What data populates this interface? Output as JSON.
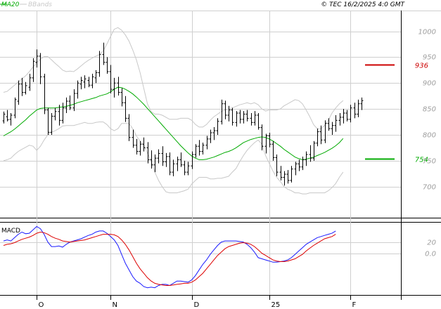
{
  "chart_data": [
    {
      "type": "line",
      "title": "",
      "xlabel": "",
      "ylabel": "",
      "legend": [
        {
          "label": "MA20",
          "color": "#00aa00"
        },
        {
          "label": "BBands",
          "color": "#c8c8c8"
        }
      ],
      "timestamp": "© TEC 16/2/2025 4:0 GMT",
      "xaxis": {
        "labels": [
          "O",
          "N",
          "D",
          "25",
          "F"
        ],
        "index_positions": [
          9,
          29,
          51,
          72,
          94
        ]
      },
      "yaxis": {
        "range": [
          640,
          1040
        ],
        "ticks": [
          1000,
          950,
          900,
          850,
          800,
          750,
          700
        ],
        "ticklabels": [
          "1000",
          "950",
          "900",
          "850",
          "800",
          "750",
          "700"
        ]
      },
      "levels": [
        {
          "value": 936,
          "label": "936",
          "color": "#cc0000"
        },
        {
          "value": 754,
          "label": "754",
          "color": "#00aa00"
        }
      ],
      "ohlc": [
        [
          827,
          845,
          822,
          840
        ],
        [
          835,
          848,
          826,
          829
        ],
        [
          830,
          842,
          818,
          838
        ],
        [
          838,
          872,
          832,
          868
        ],
        [
          865,
          905,
          858,
          898
        ],
        [
          898,
          910,
          875,
          882
        ],
        [
          882,
          902,
          878,
          895
        ],
        [
          892,
          918,
          885,
          910
        ],
        [
          910,
          948,
          902,
          942
        ],
        [
          940,
          965,
          930,
          952
        ],
        [
          952,
          958,
          898,
          912
        ],
        [
          912,
          918,
          840,
          848
        ],
        [
          848,
          852,
          800,
          805
        ],
        [
          805,
          842,
          800,
          836
        ],
        [
          836,
          852,
          828,
          845
        ],
        [
          845,
          858,
          818,
          828
        ],
        [
          828,
          862,
          822,
          852
        ],
        [
          852,
          872,
          842,
          865
        ],
        [
          865,
          876,
          848,
          852
        ],
        [
          852,
          888,
          846,
          880
        ],
        [
          880,
          905,
          870,
          900
        ],
        [
          898,
          912,
          888,
          905
        ],
        [
          902,
          915,
          890,
          908
        ],
        [
          905,
          912,
          892,
          896
        ],
        [
          896,
          918,
          890,
          912
        ],
        [
          910,
          925,
          900,
          920
        ],
        [
          920,
          962,
          912,
          955
        ],
        [
          955,
          978,
          935,
          940
        ],
        [
          940,
          950,
          918,
          922
        ],
        [
          922,
          935,
          880,
          888
        ],
        [
          888,
          910,
          872,
          900
        ],
        [
          900,
          912,
          876,
          882
        ],
        [
          882,
          890,
          855,
          862
        ],
        [
          862,
          875,
          825,
          832
        ],
        [
          832,
          840,
          788,
          795
        ],
        [
          795,
          810,
          775,
          780
        ],
        [
          780,
          792,
          762,
          768
        ],
        [
          768,
          788,
          760,
          782
        ],
        [
          782,
          795,
          768,
          775
        ],
        [
          775,
          786,
          745,
          752
        ],
        [
          752,
          770,
          735,
          742
        ],
        [
          742,
          762,
          728,
          755
        ],
        [
          755,
          772,
          745,
          764
        ],
        [
          764,
          778,
          740,
          748
        ],
        [
          748,
          765,
          738,
          758
        ],
        [
          758,
          766,
          722,
          728
        ],
        [
          728,
          752,
          720,
          744
        ],
        [
          744,
          758,
          730,
          752
        ],
        [
          752,
          766,
          738,
          742
        ],
        [
          742,
          750,
          722,
          728
        ],
        [
          728,
          748,
          722,
          740
        ],
        [
          740,
          768,
          734,
          762
        ],
        [
          762,
          782,
          756,
          778
        ],
        [
          778,
          790,
          760,
          768
        ],
        [
          768,
          785,
          762,
          780
        ],
        [
          780,
          798,
          772,
          792
        ],
        [
          792,
          810,
          784,
          804
        ],
        [
          804,
          815,
          790,
          808
        ],
        [
          808,
          832,
          800,
          826
        ],
        [
          826,
          868,
          820,
          860
        ],
        [
          860,
          866,
          830,
          838
        ],
        [
          838,
          856,
          826,
          848
        ],
        [
          848,
          852,
          818,
          824
        ],
        [
          824,
          846,
          816,
          842
        ],
        [
          842,
          848,
          822,
          830
        ],
        [
          830,
          846,
          822,
          840
        ],
        [
          840,
          848,
          826,
          832
        ],
        [
          832,
          842,
          818,
          824
        ],
        [
          824,
          846,
          818,
          838
        ],
        [
          838,
          842,
          810,
          814
        ],
        [
          814,
          820,
          770,
          778
        ],
        [
          778,
          802,
          764,
          798
        ],
        [
          798,
          804,
          776,
          782
        ],
        [
          782,
          788,
          750,
          756
        ],
        [
          756,
          762,
          720,
          728
        ],
        [
          728,
          740,
          712,
          718
        ],
        [
          718,
          730,
          702,
          724
        ],
        [
          724,
          732,
          706,
          712
        ],
        [
          712,
          740,
          708,
          734
        ],
        [
          734,
          748,
          722,
          744
        ],
        [
          744,
          752,
          730,
          738
        ],
        [
          738,
          758,
          732,
          752
        ],
        [
          752,
          768,
          740,
          762
        ],
        [
          762,
          780,
          748,
          755
        ],
        [
          755,
          788,
          750,
          784
        ],
        [
          784,
          812,
          778,
          806
        ],
        [
          806,
          818,
          782,
          790
        ],
        [
          790,
          828,
          784,
          822
        ],
        [
          822,
          832,
          808,
          812
        ],
        [
          812,
          825,
          800,
          818
        ],
        [
          818,
          838,
          806,
          828
        ],
        [
          828,
          842,
          818,
          834
        ],
        [
          834,
          850,
          822,
          842
        ],
        [
          842,
          848,
          826,
          830
        ],
        [
          830,
          858,
          824,
          852
        ],
        [
          852,
          862,
          832,
          840
        ],
        [
          840,
          868,
          834,
          860
        ],
        [
          860,
          872,
          848,
          866
        ]
      ],
      "ma20": [
        798,
        802,
        806,
        811,
        817,
        823,
        829,
        836,
        842,
        848,
        851,
        852,
        852,
        852,
        852,
        853,
        854,
        855,
        857,
        859,
        862,
        864,
        866,
        868,
        870,
        872,
        875,
        877,
        879,
        883,
        888,
        892,
        891,
        888,
        884,
        879,
        873,
        866,
        859,
        851,
        843,
        835,
        827,
        819,
        811,
        803,
        795,
        787,
        779,
        772,
        765,
        759,
        755,
        752,
        752,
        753,
        755,
        757,
        760,
        763,
        766,
        768,
        771,
        775,
        780,
        785,
        788,
        791,
        793,
        795,
        796,
        795,
        792,
        788,
        783,
        778,
        772,
        767,
        762,
        757,
        754,
        752,
        753,
        755,
        757,
        760,
        763,
        766,
        770,
        774,
        779,
        785,
        793
      ],
      "bb_upper": [
        882,
        884,
        890,
        896,
        902,
        908,
        914,
        922,
        931,
        939,
        946,
        951,
        951,
        945,
        938,
        932,
        925,
        922,
        923,
        922,
        927,
        933,
        939,
        944,
        948,
        952,
        955,
        962,
        975,
        990,
        1004,
        1007,
        1002,
        993,
        981,
        964,
        945,
        920,
        890,
        860,
        845,
        840,
        840,
        838,
        834,
        830,
        830,
        830,
        832,
        832,
        832,
        828,
        820,
        815,
        815,
        820,
        828,
        835,
        840,
        845,
        848,
        850,
        852,
        855,
        858,
        860,
        862,
        860,
        862,
        858,
        850,
        846,
        848,
        848,
        848,
        850,
        856,
        860,
        864,
        868,
        866,
        860,
        848,
        835,
        820,
        812,
        812,
        818,
        828,
        842,
        852,
        860,
        866
      ],
      "bb_lower": [
        750,
        752,
        755,
        762,
        768,
        772,
        776,
        780,
        778,
        770,
        778,
        790,
        800,
        805,
        808,
        812,
        817,
        818,
        818,
        818,
        820,
        822,
        824,
        822,
        822,
        824,
        825,
        825,
        820,
        812,
        808,
        812,
        822,
        822,
        822,
        812,
        798,
        788,
        780,
        765,
        750,
        728,
        712,
        700,
        690,
        688,
        688,
        688,
        690,
        692,
        695,
        705,
        712,
        718,
        718,
        718,
        715,
        715,
        716,
        716,
        718,
        720,
        728,
        735,
        748,
        760,
        770,
        778,
        785,
        790,
        782,
        760,
        745,
        730,
        718,
        710,
        700,
        695,
        692,
        688,
        688,
        686,
        686,
        688,
        688,
        688,
        688,
        688,
        692,
        698,
        706,
        718,
        728
      ],
      "macd": {
        "title": "MACD",
        "yaxis": {
          "range": [
            -75,
            55
          ],
          "ticks": [
            20,
            0
          ],
          "ticklabels": [
            "20",
            "0.0"
          ]
        },
        "macd": [
          22,
          24,
          22,
          28,
          34,
          38,
          35,
          36,
          42,
          48,
          44,
          34,
          20,
          12,
          12,
          13,
          11,
          16,
          20,
          22,
          24,
          26,
          29,
          32,
          34,
          38,
          40,
          40,
          36,
          30,
          24,
          14,
          -2,
          -18,
          -30,
          -42,
          -50,
          -54,
          -60,
          -62,
          -61,
          -62,
          -58,
          -56,
          -56,
          -58,
          -54,
          -50,
          -50,
          -51,
          -52,
          -48,
          -40,
          -30,
          -20,
          -12,
          -2,
          6,
          14,
          20,
          22,
          22,
          22,
          22,
          21,
          20,
          16,
          10,
          2,
          -8,
          -10,
          -12,
          -14,
          -16,
          -16,
          -15,
          -14,
          -12,
          -8,
          -2,
          4,
          10,
          16,
          20,
          24,
          28,
          30,
          32,
          34,
          36,
          40
        ],
        "signal": [
          14,
          16,
          17,
          19,
          22,
          25,
          27,
          29,
          32,
          36,
          38,
          37,
          34,
          30,
          27,
          25,
          22,
          21,
          20,
          21,
          22,
          23,
          24,
          26,
          28,
          30,
          32,
          34,
          34,
          34,
          33,
          30,
          24,
          16,
          6,
          -6,
          -18,
          -28,
          -36,
          -44,
          -50,
          -54,
          -56,
          -57,
          -58,
          -58,
          -57,
          -56,
          -55,
          -54,
          -54,
          -52,
          -48,
          -42,
          -36,
          -28,
          -20,
          -12,
          -4,
          2,
          8,
          12,
          14,
          16,
          18,
          19,
          18,
          16,
          12,
          6,
          0,
          -4,
          -8,
          -12,
          -14,
          -15,
          -15,
          -14,
          -12,
          -10,
          -6,
          -2,
          4,
          9,
          14,
          18,
          22,
          26,
          28,
          30,
          34
        ]
      }
    }
  ]
}
